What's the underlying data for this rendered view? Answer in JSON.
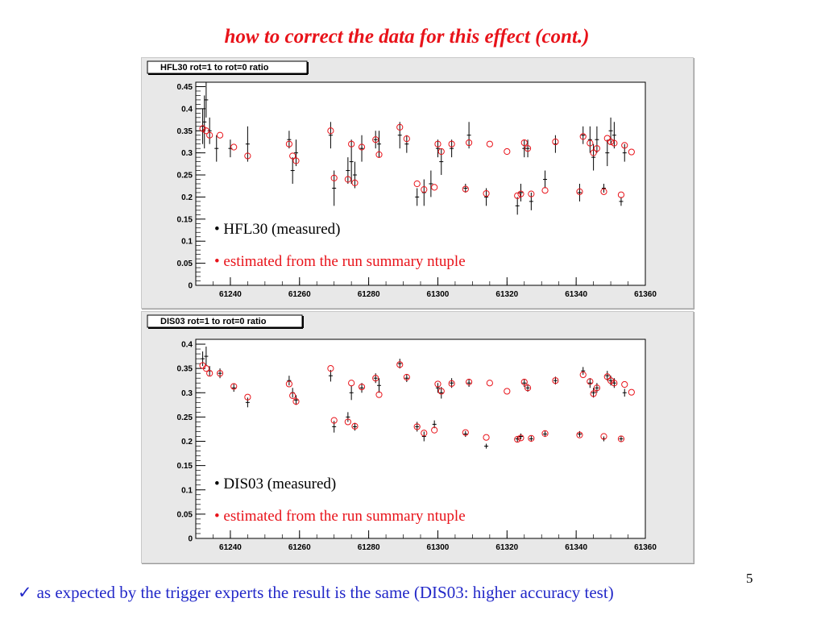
{
  "slide": {
    "title": "how to correct the data for this effect (cont.)",
    "footer_check": "✓",
    "footer": "as expected by the trigger experts the result is the same (DIS03: higher accuracy test)",
    "page_number": "5"
  },
  "colors": {
    "measured": "#000000",
    "estimated": "#e8131a",
    "title": "#e8131a",
    "footer": "#2228c8"
  },
  "chart_data": [
    {
      "type": "scatter",
      "title": "HFL30 rot=1 to rot=0 ratio",
      "xlim": [
        61230,
        61360
      ],
      "ylim": [
        0,
        0.46
      ],
      "xticks": [
        61240,
        61260,
        61280,
        61300,
        61320,
        61340,
        61360
      ],
      "yticks": [
        0,
        0.05,
        0.1,
        0.15,
        0.2,
        0.25,
        0.3,
        0.35,
        0.4,
        0.45
      ],
      "grid": false,
      "legend": [
        "• HFL30 (measured)",
        "• estimated from the run summary ntuple"
      ],
      "series": [
        {
          "name": "HFL30 (measured)",
          "marker": "cross",
          "points": [
            [
              61232,
              0.36,
              0.04
            ],
            [
              61232.5,
              0.37,
              0.06
            ],
            [
              61233,
              0.42,
              0.04
            ],
            [
              61234,
              0.35,
              0.03
            ],
            [
              61236,
              0.31,
              0.03
            ],
            [
              61240,
              0.31,
              0.02
            ],
            [
              61245,
              0.32,
              0.04
            ],
            [
              61257,
              0.33,
              0.02
            ],
            [
              61258,
              0.26,
              0.03
            ],
            [
              61259,
              0.3,
              0.03
            ],
            [
              61269,
              0.34,
              0.03
            ],
            [
              61270,
              0.22,
              0.04
            ],
            [
              61274,
              0.26,
              0.03
            ],
            [
              61275,
              0.28,
              0.05
            ],
            [
              61276,
              0.25,
              0.03
            ],
            [
              61278,
              0.31,
              0.03
            ],
            [
              61282,
              0.33,
              0.02
            ],
            [
              61283,
              0.32,
              0.03
            ],
            [
              61289,
              0.34,
              0.03
            ],
            [
              61291,
              0.32,
              0.02
            ],
            [
              61294,
              0.2,
              0.02
            ],
            [
              61296,
              0.21,
              0.03
            ],
            [
              61298,
              0.23,
              0.03
            ],
            [
              61300,
              0.31,
              0.02
            ],
            [
              61301,
              0.28,
              0.03
            ],
            [
              61304,
              0.31,
              0.02
            ],
            [
              61308,
              0.22,
              0.01
            ],
            [
              61309,
              0.34,
              0.03
            ],
            [
              61314,
              0.2,
              0.02
            ],
            [
              61323,
              0.18,
              0.02
            ],
            [
              61324,
              0.21,
              0.02
            ],
            [
              61325,
              0.31,
              0.02
            ],
            [
              61326,
              0.31,
              0.02
            ],
            [
              61327,
              0.19,
              0.02
            ],
            [
              61331,
              0.24,
              0.02
            ],
            [
              61334,
              0.32,
              0.02
            ],
            [
              61341,
              0.21,
              0.02
            ],
            [
              61342,
              0.34,
              0.02
            ],
            [
              61344,
              0.33,
              0.03
            ],
            [
              61345,
              0.29,
              0.03
            ],
            [
              61346,
              0.33,
              0.03
            ],
            [
              61348,
              0.22,
              0.01
            ],
            [
              61349,
              0.3,
              0.03
            ],
            [
              61350,
              0.35,
              0.03
            ],
            [
              61351,
              0.34,
              0.03
            ],
            [
              61353,
              0.19,
              0.01
            ],
            [
              61354,
              0.3,
              0.02
            ]
          ]
        },
        {
          "name": "estimated from the run summary ntuple",
          "marker": "circle",
          "points": [
            [
              61232,
              0.355
            ],
            [
              61233,
              0.35
            ],
            [
              61234,
              0.34
            ],
            [
              61237,
              0.34
            ],
            [
              61241,
              0.313
            ],
            [
              61245,
              0.293
            ],
            [
              61257,
              0.32
            ],
            [
              61258,
              0.293
            ],
            [
              61259,
              0.282
            ],
            [
              61269,
              0.35
            ],
            [
              61270,
              0.243
            ],
            [
              61274,
              0.24
            ],
            [
              61275,
              0.32
            ],
            [
              61276,
              0.232
            ],
            [
              61278,
              0.313
            ],
            [
              61282,
              0.33
            ],
            [
              61283,
              0.296
            ],
            [
              61289,
              0.358
            ],
            [
              61291,
              0.332
            ],
            [
              61294,
              0.23
            ],
            [
              61296,
              0.217
            ],
            [
              61299,
              0.222
            ],
            [
              61300,
              0.32
            ],
            [
              61301,
              0.303
            ],
            [
              61304,
              0.32
            ],
            [
              61308,
              0.218
            ],
            [
              61309,
              0.323
            ],
            [
              61314,
              0.208
            ],
            [
              61315,
              0.32
            ],
            [
              61320,
              0.303
            ],
            [
              61323,
              0.203
            ],
            [
              61324,
              0.207
            ],
            [
              61325,
              0.323
            ],
            [
              61326,
              0.31
            ],
            [
              61327,
              0.207
            ],
            [
              61331,
              0.215
            ],
            [
              61334,
              0.325
            ],
            [
              61341,
              0.212
            ],
            [
              61342,
              0.337
            ],
            [
              61344,
              0.322
            ],
            [
              61345,
              0.3
            ],
            [
              61346,
              0.31
            ],
            [
              61348,
              0.212
            ],
            [
              61349,
              0.333
            ],
            [
              61350,
              0.325
            ],
            [
              61351,
              0.322
            ],
            [
              61353,
              0.205
            ],
            [
              61354,
              0.317
            ],
            [
              61356,
              0.302
            ]
          ]
        }
      ]
    },
    {
      "type": "scatter",
      "title": "DIS03 rot=1 to rot=0 ratio",
      "xlim": [
        61230,
        61360
      ],
      "ylim": [
        0,
        0.41
      ],
      "xticks": [
        61240,
        61260,
        61280,
        61300,
        61320,
        61340,
        61360
      ],
      "yticks": [
        0,
        0.05,
        0.1,
        0.15,
        0.2,
        0.25,
        0.3,
        0.35,
        0.4
      ],
      "grid": false,
      "legend": [
        "• DIS03 (measured)",
        "• estimated from the run summary ntuple"
      ],
      "series": [
        {
          "name": "DIS03 (measured)",
          "marker": "cross",
          "points": [
            [
              61232,
              0.37,
              0.015
            ],
            [
              61233,
              0.375,
              0.02
            ],
            [
              61234,
              0.345,
              0.01
            ],
            [
              61237,
              0.34,
              0.01
            ],
            [
              61241,
              0.31,
              0.008
            ],
            [
              61245,
              0.28,
              0.01
            ],
            [
              61257,
              0.325,
              0.01
            ],
            [
              61258,
              0.3,
              0.01
            ],
            [
              61259,
              0.285,
              0.01
            ],
            [
              61269,
              0.335,
              0.012
            ],
            [
              61270,
              0.23,
              0.012
            ],
            [
              61274,
              0.25,
              0.01
            ],
            [
              61275,
              0.3,
              0.015
            ],
            [
              61276,
              0.23,
              0.008
            ],
            [
              61278,
              0.31,
              0.01
            ],
            [
              61282,
              0.33,
              0.01
            ],
            [
              61283,
              0.315,
              0.015
            ],
            [
              61289,
              0.36,
              0.01
            ],
            [
              61291,
              0.33,
              0.008
            ],
            [
              61294,
              0.23,
              0.01
            ],
            [
              61296,
              0.21,
              0.01
            ],
            [
              61299,
              0.235,
              0.008
            ],
            [
              61300,
              0.31,
              0.01
            ],
            [
              61301,
              0.3,
              0.012
            ],
            [
              61304,
              0.32,
              0.01
            ],
            [
              61308,
              0.215,
              0.006
            ],
            [
              61309,
              0.32,
              0.008
            ],
            [
              61314,
              0.19,
              0.005
            ],
            [
              61323,
              0.205,
              0.006
            ],
            [
              61324,
              0.21,
              0.006
            ],
            [
              61325,
              0.32,
              0.008
            ],
            [
              61326,
              0.31,
              0.008
            ],
            [
              61327,
              0.205,
              0.006
            ],
            [
              61331,
              0.215,
              0.006
            ],
            [
              61334,
              0.325,
              0.008
            ],
            [
              61341,
              0.215,
              0.006
            ],
            [
              61342,
              0.345,
              0.008
            ],
            [
              61344,
              0.32,
              0.01
            ],
            [
              61345,
              0.3,
              0.01
            ],
            [
              61346,
              0.31,
              0.01
            ],
            [
              61348,
              0.205,
              0.005
            ],
            [
              61349,
              0.335,
              0.01
            ],
            [
              61350,
              0.325,
              0.01
            ],
            [
              61351,
              0.32,
              0.01
            ],
            [
              61353,
              0.205,
              0.005
            ],
            [
              61354,
              0.3,
              0.008
            ]
          ]
        },
        {
          "name": "estimated from the run summary ntuple",
          "marker": "circle",
          "points": [
            [
              61232,
              0.356
            ],
            [
              61233,
              0.35
            ],
            [
              61234,
              0.34
            ],
            [
              61237,
              0.34
            ],
            [
              61241,
              0.313
            ],
            [
              61245,
              0.291
            ],
            [
              61257,
              0.318
            ],
            [
              61258,
              0.294
            ],
            [
              61259,
              0.282
            ],
            [
              61269,
              0.35
            ],
            [
              61270,
              0.243
            ],
            [
              61274,
              0.24
            ],
            [
              61275,
              0.32
            ],
            [
              61276,
              0.231
            ],
            [
              61278,
              0.312
            ],
            [
              61282,
              0.33
            ],
            [
              61283,
              0.296
            ],
            [
              61289,
              0.358
            ],
            [
              61291,
              0.332
            ],
            [
              61294,
              0.23
            ],
            [
              61296,
              0.217
            ],
            [
              61299,
              0.223
            ],
            [
              61300,
              0.318
            ],
            [
              61301,
              0.303
            ],
            [
              61304,
              0.319
            ],
            [
              61308,
              0.218
            ],
            [
              61309,
              0.322
            ],
            [
              61314,
              0.208
            ],
            [
              61315,
              0.32
            ],
            [
              61320,
              0.303
            ],
            [
              61323,
              0.204
            ],
            [
              61324,
              0.207
            ],
            [
              61325,
              0.322
            ],
            [
              61326,
              0.31
            ],
            [
              61327,
              0.206
            ],
            [
              61331,
              0.216
            ],
            [
              61334,
              0.325
            ],
            [
              61341,
              0.213
            ],
            [
              61342,
              0.337
            ],
            [
              61344,
              0.323
            ],
            [
              61345,
              0.298
            ],
            [
              61346,
              0.31
            ],
            [
              61348,
              0.21
            ],
            [
              61349,
              0.333
            ],
            [
              61350,
              0.325
            ],
            [
              61351,
              0.32
            ],
            [
              61353,
              0.205
            ],
            [
              61354,
              0.317
            ],
            [
              61356,
              0.301
            ]
          ]
        }
      ]
    }
  ]
}
